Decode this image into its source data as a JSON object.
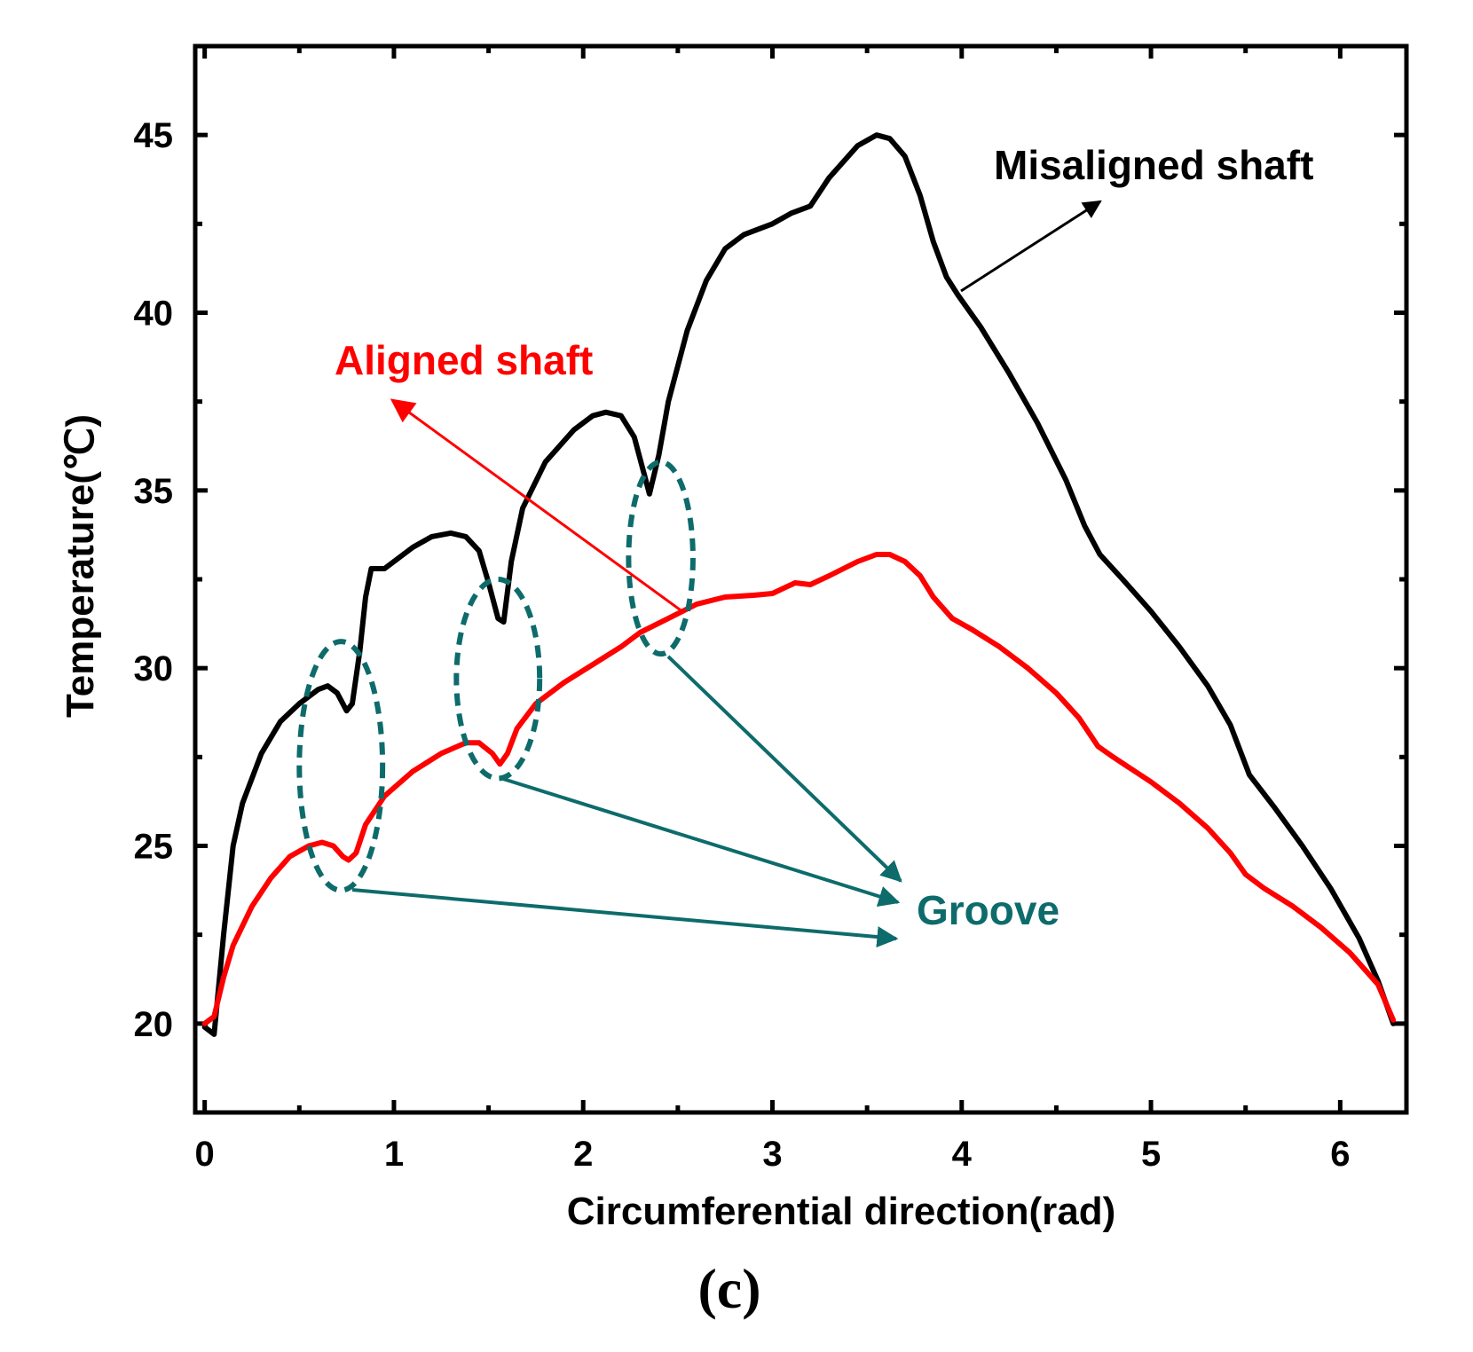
{
  "chart_data": {
    "type": "line",
    "panel_label": "(c)",
    "xlabel": "Circumferential direction(rad)",
    "ylabel": "Temperature(℃)",
    "xlim": [
      -0.05,
      6.35
    ],
    "ylim": [
      17.5,
      47.5
    ],
    "xticks": [
      0,
      1,
      2,
      3,
      4,
      5,
      6
    ],
    "yticks": [
      20,
      25,
      30,
      35,
      40,
      45
    ],
    "grid": false,
    "colors": {
      "misaligned": "#000000",
      "aligned": "#ff0000",
      "groove": "#0e6b6b"
    },
    "series": [
      {
        "name": "Misaligned shaft",
        "color": "#000000",
        "points": [
          [
            0,
            19.9
          ],
          [
            0.05,
            19.7
          ],
          [
            0.1,
            22.5
          ],
          [
            0.15,
            25.0
          ],
          [
            0.2,
            26.2
          ],
          [
            0.3,
            27.6
          ],
          [
            0.4,
            28.5
          ],
          [
            0.5,
            29.0
          ],
          [
            0.6,
            29.4
          ],
          [
            0.65,
            29.5
          ],
          [
            0.7,
            29.3
          ],
          [
            0.75,
            28.8
          ],
          [
            0.78,
            29.0
          ],
          [
            0.82,
            30.5
          ],
          [
            0.85,
            32.0
          ],
          [
            0.88,
            32.8
          ],
          [
            0.95,
            32.8
          ],
          [
            1.0,
            33.0
          ],
          [
            1.1,
            33.4
          ],
          [
            1.2,
            33.7
          ],
          [
            1.3,
            33.8
          ],
          [
            1.38,
            33.7
          ],
          [
            1.45,
            33.3
          ],
          [
            1.5,
            32.4
          ],
          [
            1.55,
            31.4
          ],
          [
            1.58,
            31.3
          ],
          [
            1.62,
            33.0
          ],
          [
            1.68,
            34.5
          ],
          [
            1.8,
            35.8
          ],
          [
            1.95,
            36.7
          ],
          [
            2.05,
            37.1
          ],
          [
            2.12,
            37.2
          ],
          [
            2.2,
            37.1
          ],
          [
            2.27,
            36.5
          ],
          [
            2.32,
            35.5
          ],
          [
            2.35,
            34.9
          ],
          [
            2.4,
            36.0
          ],
          [
            2.45,
            37.5
          ],
          [
            2.55,
            39.5
          ],
          [
            2.65,
            40.9
          ],
          [
            2.75,
            41.8
          ],
          [
            2.85,
            42.2
          ],
          [
            3.0,
            42.5
          ],
          [
            3.1,
            42.8
          ],
          [
            3.2,
            43.0
          ],
          [
            3.3,
            43.8
          ],
          [
            3.45,
            44.7
          ],
          [
            3.55,
            45.0
          ],
          [
            3.62,
            44.9
          ],
          [
            3.7,
            44.4
          ],
          [
            3.78,
            43.3
          ],
          [
            3.85,
            42.0
          ],
          [
            3.92,
            41.0
          ],
          [
            3.98,
            40.5
          ],
          [
            4.1,
            39.6
          ],
          [
            4.25,
            38.3
          ],
          [
            4.4,
            36.9
          ],
          [
            4.55,
            35.3
          ],
          [
            4.65,
            34.0
          ],
          [
            4.73,
            33.2
          ],
          [
            4.85,
            32.5
          ],
          [
            5.0,
            31.6
          ],
          [
            5.15,
            30.6
          ],
          [
            5.3,
            29.5
          ],
          [
            5.42,
            28.4
          ],
          [
            5.52,
            27.0
          ],
          [
            5.65,
            26.1
          ],
          [
            5.8,
            25.0
          ],
          [
            5.95,
            23.8
          ],
          [
            6.1,
            22.4
          ],
          [
            6.2,
            21.2
          ],
          [
            6.28,
            20.0
          ]
        ]
      },
      {
        "name": "Aligned shaft",
        "color": "#ff0000",
        "points": [
          [
            0,
            20.0
          ],
          [
            0.05,
            20.2
          ],
          [
            0.1,
            21.3
          ],
          [
            0.15,
            22.2
          ],
          [
            0.25,
            23.3
          ],
          [
            0.35,
            24.1
          ],
          [
            0.45,
            24.7
          ],
          [
            0.55,
            25.0
          ],
          [
            0.62,
            25.1
          ],
          [
            0.68,
            25.0
          ],
          [
            0.73,
            24.7
          ],
          [
            0.76,
            24.6
          ],
          [
            0.8,
            24.8
          ],
          [
            0.85,
            25.6
          ],
          [
            0.95,
            26.4
          ],
          [
            1.1,
            27.1
          ],
          [
            1.25,
            27.6
          ],
          [
            1.38,
            27.9
          ],
          [
            1.45,
            27.9
          ],
          [
            1.52,
            27.6
          ],
          [
            1.56,
            27.3
          ],
          [
            1.6,
            27.6
          ],
          [
            1.65,
            28.3
          ],
          [
            1.75,
            29.0
          ],
          [
            1.9,
            29.6
          ],
          [
            2.05,
            30.1
          ],
          [
            2.2,
            30.6
          ],
          [
            2.3,
            31.0
          ],
          [
            2.45,
            31.4
          ],
          [
            2.6,
            31.8
          ],
          [
            2.75,
            32.0
          ],
          [
            2.9,
            32.05
          ],
          [
            3.0,
            32.1
          ],
          [
            3.12,
            32.4
          ],
          [
            3.2,
            32.35
          ],
          [
            3.3,
            32.6
          ],
          [
            3.45,
            33.0
          ],
          [
            3.55,
            33.2
          ],
          [
            3.62,
            33.2
          ],
          [
            3.7,
            33.0
          ],
          [
            3.78,
            32.6
          ],
          [
            3.85,
            32.0
          ],
          [
            3.95,
            31.4
          ],
          [
            4.05,
            31.1
          ],
          [
            4.2,
            30.6
          ],
          [
            4.35,
            30.0
          ],
          [
            4.5,
            29.3
          ],
          [
            4.62,
            28.6
          ],
          [
            4.72,
            27.8
          ],
          [
            4.8,
            27.5
          ],
          [
            5.0,
            26.8
          ],
          [
            5.15,
            26.2
          ],
          [
            5.3,
            25.5
          ],
          [
            5.42,
            24.8
          ],
          [
            5.5,
            24.2
          ],
          [
            5.6,
            23.8
          ],
          [
            5.75,
            23.3
          ],
          [
            5.9,
            22.7
          ],
          [
            6.05,
            22.0
          ],
          [
            6.2,
            21.1
          ],
          [
            6.28,
            20.1
          ]
        ]
      }
    ],
    "annotations": {
      "misaligned_label": "Misaligned shaft",
      "aligned_label": "Aligned shaft",
      "groove_label": "Groove"
    },
    "groove_ellipses": [
      {
        "cx": 0.72,
        "cy": 27.25,
        "rx": 0.22,
        "ry": 3.5
      },
      {
        "cx": 1.55,
        "cy": 29.7,
        "rx": 0.22,
        "ry": 2.8
      },
      {
        "cx": 2.41,
        "cy": 33.1,
        "rx": 0.17,
        "ry": 2.7
      }
    ]
  }
}
